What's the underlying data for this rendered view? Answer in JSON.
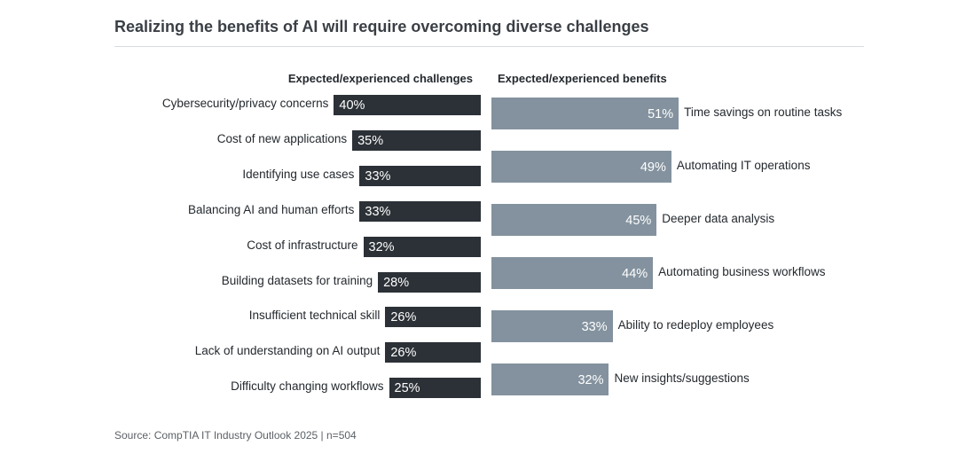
{
  "title": "Realizing the benefits of AI will require overcoming diverse challenges",
  "source": "Source: CompTIA IT Industry Outlook 2025 | n=504",
  "colors": {
    "challenge_bar": "#2b3137",
    "benefit_bar": "#83929e",
    "bar_text": "#ffffff"
  },
  "chart_data": [
    {
      "type": "bar",
      "orientation": "horizontal",
      "direction": "right-to-left",
      "title": "Expected/experienced challenges",
      "categories": [
        "Cybersecurity/privacy concerns",
        "Cost of new applications",
        "Identifying use cases",
        "Balancing AI and human efforts",
        "Cost of infrastructure",
        "Building datasets for training",
        "Insufficient technical skill",
        "Lack of understanding on AI output",
        "Difficulty changing workflows"
      ],
      "values": [
        40,
        35,
        33,
        33,
        32,
        28,
        26,
        26,
        25
      ],
      "value_labels": [
        "40%",
        "35%",
        "33%",
        "33%",
        "32%",
        "28%",
        "26%",
        "26%",
        "25%"
      ],
      "unit": "%",
      "grid": false
    },
    {
      "type": "bar",
      "orientation": "horizontal",
      "direction": "left-to-right",
      "title": "Expected/experienced benefits",
      "categories": [
        "Time savings on routine tasks",
        "Automating IT operations",
        "Deeper data analysis",
        "Automating business workflows",
        "Ability to redeploy employees",
        "New insights/suggestions"
      ],
      "values": [
        51,
        49,
        45,
        44,
        33,
        32
      ],
      "value_labels": [
        "51%",
        "49%",
        "45%",
        "44%",
        "33%",
        "32%"
      ],
      "unit": "%",
      "grid": false
    }
  ]
}
